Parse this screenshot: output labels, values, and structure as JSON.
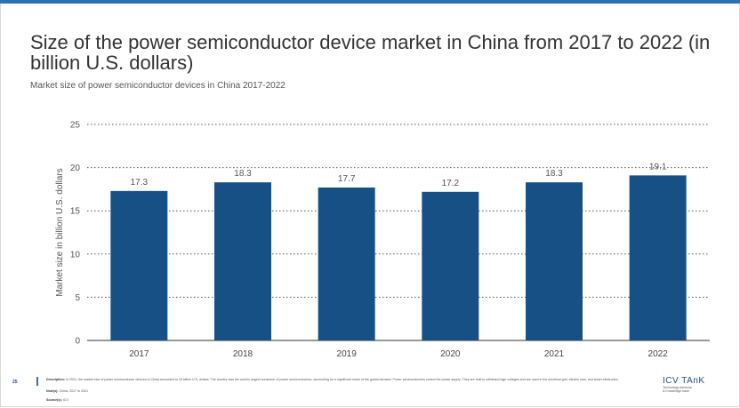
{
  "page": {
    "title": "Size of the power semiconductor device market in China from 2017 to 2022 (in billion U.S. dollars)",
    "subtitle": "Market size of power semiconductor devices in China 2017-2022",
    "page_number": "25",
    "description_label": "Description:",
    "description_text": "In 2021, the market size of power semiconductor devices in China amounted to 18 billion U.S. dollars. The country was the world's largest consumer of power semiconductors, accounting for a significant share of the global demand. Power semiconductors control the power supply. They are built to withstand high voltages and are used in the electrical grid, electric cars, and smart electronics.",
    "notes_label": "Note(s):",
    "notes_text": "China, 2017 to 2021",
    "source_label": "Source(s):",
    "source_text": "ICV",
    "logo_name": "ICV TAnK",
    "logo_tag1": "Technology Advisory",
    "logo_tag2": "& Knowledge base"
  },
  "chart_data": {
    "type": "bar",
    "categories": [
      "2017",
      "2018",
      "2019",
      "2020",
      "2021",
      "2022"
    ],
    "values": [
      17.3,
      18.3,
      17.7,
      17.2,
      18.3,
      19.1
    ],
    "value_labels": [
      "17.3",
      "18.3",
      "17.7",
      "17.2",
      "18.3",
      "19.1"
    ],
    "ylabel": "Market size in billion U.S. dollars",
    "ylim": [
      0,
      25
    ],
    "yticks": [
      0,
      5,
      10,
      15,
      20,
      25
    ],
    "grid": true,
    "colors": {
      "bar": "#175085",
      "grid": "#555555",
      "axis": "#333333"
    }
  }
}
